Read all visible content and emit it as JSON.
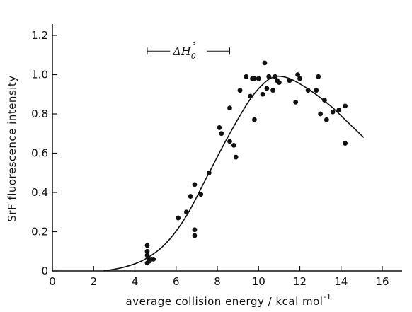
{
  "chart_data": {
    "type": "scatter",
    "title": "",
    "xlabel": "average collision energy / kcal mol",
    "xlabel_superscript": "-1",
    "ylabel": "SrF fluorescence intensity",
    "xlim": [
      0,
      16
    ],
    "ylim": [
      0,
      1.2
    ],
    "x_ticks": [
      0,
      2,
      4,
      6,
      8,
      10,
      12,
      14,
      16
    ],
    "x_tick_labels": [
      "0",
      "2",
      "4",
      "6",
      "8",
      "10",
      "12",
      "14",
      "16"
    ],
    "y_ticks": [
      0,
      0.2,
      0.4,
      0.6,
      0.8,
      1.0,
      1.2
    ],
    "y_tick_labels": [
      "0",
      "0.2",
      "0.4",
      "0.6",
      "0.8",
      "1.0",
      "1.2"
    ],
    "grid": false,
    "legend": "none",
    "colors": {
      "points": "#111111",
      "curve": "#111111",
      "axes": "#111111"
    },
    "annotation": {
      "label": "ΔH",
      "subscript": "0",
      "superscript": "°",
      "x_range": [
        4.6,
        8.6
      ],
      "y": 1.12
    },
    "series": [
      {
        "type": "scatter",
        "points": [
          [
            4.6,
            0.13
          ],
          [
            4.6,
            0.1
          ],
          [
            4.6,
            0.08
          ],
          [
            4.7,
            0.06
          ],
          [
            4.7,
            0.05
          ],
          [
            4.6,
            0.04
          ],
          [
            4.8,
            0.06
          ],
          [
            4.9,
            0.06
          ],
          [
            6.1,
            0.27
          ],
          [
            6.5,
            0.3
          ],
          [
            6.7,
            0.38
          ],
          [
            6.9,
            0.44
          ],
          [
            6.9,
            0.21
          ],
          [
            6.9,
            0.18
          ],
          [
            7.2,
            0.39
          ],
          [
            7.6,
            0.5
          ],
          [
            8.1,
            0.73
          ],
          [
            8.2,
            0.7
          ],
          [
            8.6,
            0.83
          ],
          [
            8.6,
            0.66
          ],
          [
            8.8,
            0.64
          ],
          [
            8.9,
            0.58
          ],
          [
            9.1,
            0.92
          ],
          [
            9.4,
            0.99
          ],
          [
            9.6,
            0.89
          ],
          [
            9.7,
            0.98
          ],
          [
            9.8,
            0.77
          ],
          [
            9.8,
            0.98
          ],
          [
            10.0,
            0.98
          ],
          [
            10.2,
            0.9
          ],
          [
            10.3,
            1.06
          ],
          [
            10.4,
            0.93
          ],
          [
            10.5,
            0.99
          ],
          [
            10.5,
            0.99
          ],
          [
            10.7,
            0.92
          ],
          [
            10.8,
            0.99
          ],
          [
            10.9,
            0.97
          ],
          [
            11.0,
            0.96
          ],
          [
            11.5,
            0.97
          ],
          [
            11.8,
            0.86
          ],
          [
            11.9,
            1.0
          ],
          [
            12.0,
            0.98
          ],
          [
            12.4,
            0.92
          ],
          [
            12.8,
            0.92
          ],
          [
            12.9,
            0.99
          ],
          [
            13.0,
            0.8
          ],
          [
            13.2,
            0.87
          ],
          [
            13.3,
            0.77
          ],
          [
            13.6,
            0.81
          ],
          [
            13.9,
            0.82
          ],
          [
            14.2,
            0.84
          ],
          [
            14.2,
            0.65
          ]
        ]
      },
      {
        "type": "line",
        "points": [
          [
            2.5,
            0.0
          ],
          [
            3.5,
            0.02
          ],
          [
            4.5,
            0.06
          ],
          [
            5.5,
            0.14
          ],
          [
            6.5,
            0.28
          ],
          [
            7.5,
            0.48
          ],
          [
            8.5,
            0.68
          ],
          [
            9.5,
            0.86
          ],
          [
            10.2,
            0.95
          ],
          [
            10.8,
            0.99
          ],
          [
            11.5,
            0.98
          ],
          [
            12.5,
            0.92
          ],
          [
            13.5,
            0.84
          ],
          [
            14.3,
            0.76
          ],
          [
            15.1,
            0.68
          ]
        ]
      }
    ]
  }
}
